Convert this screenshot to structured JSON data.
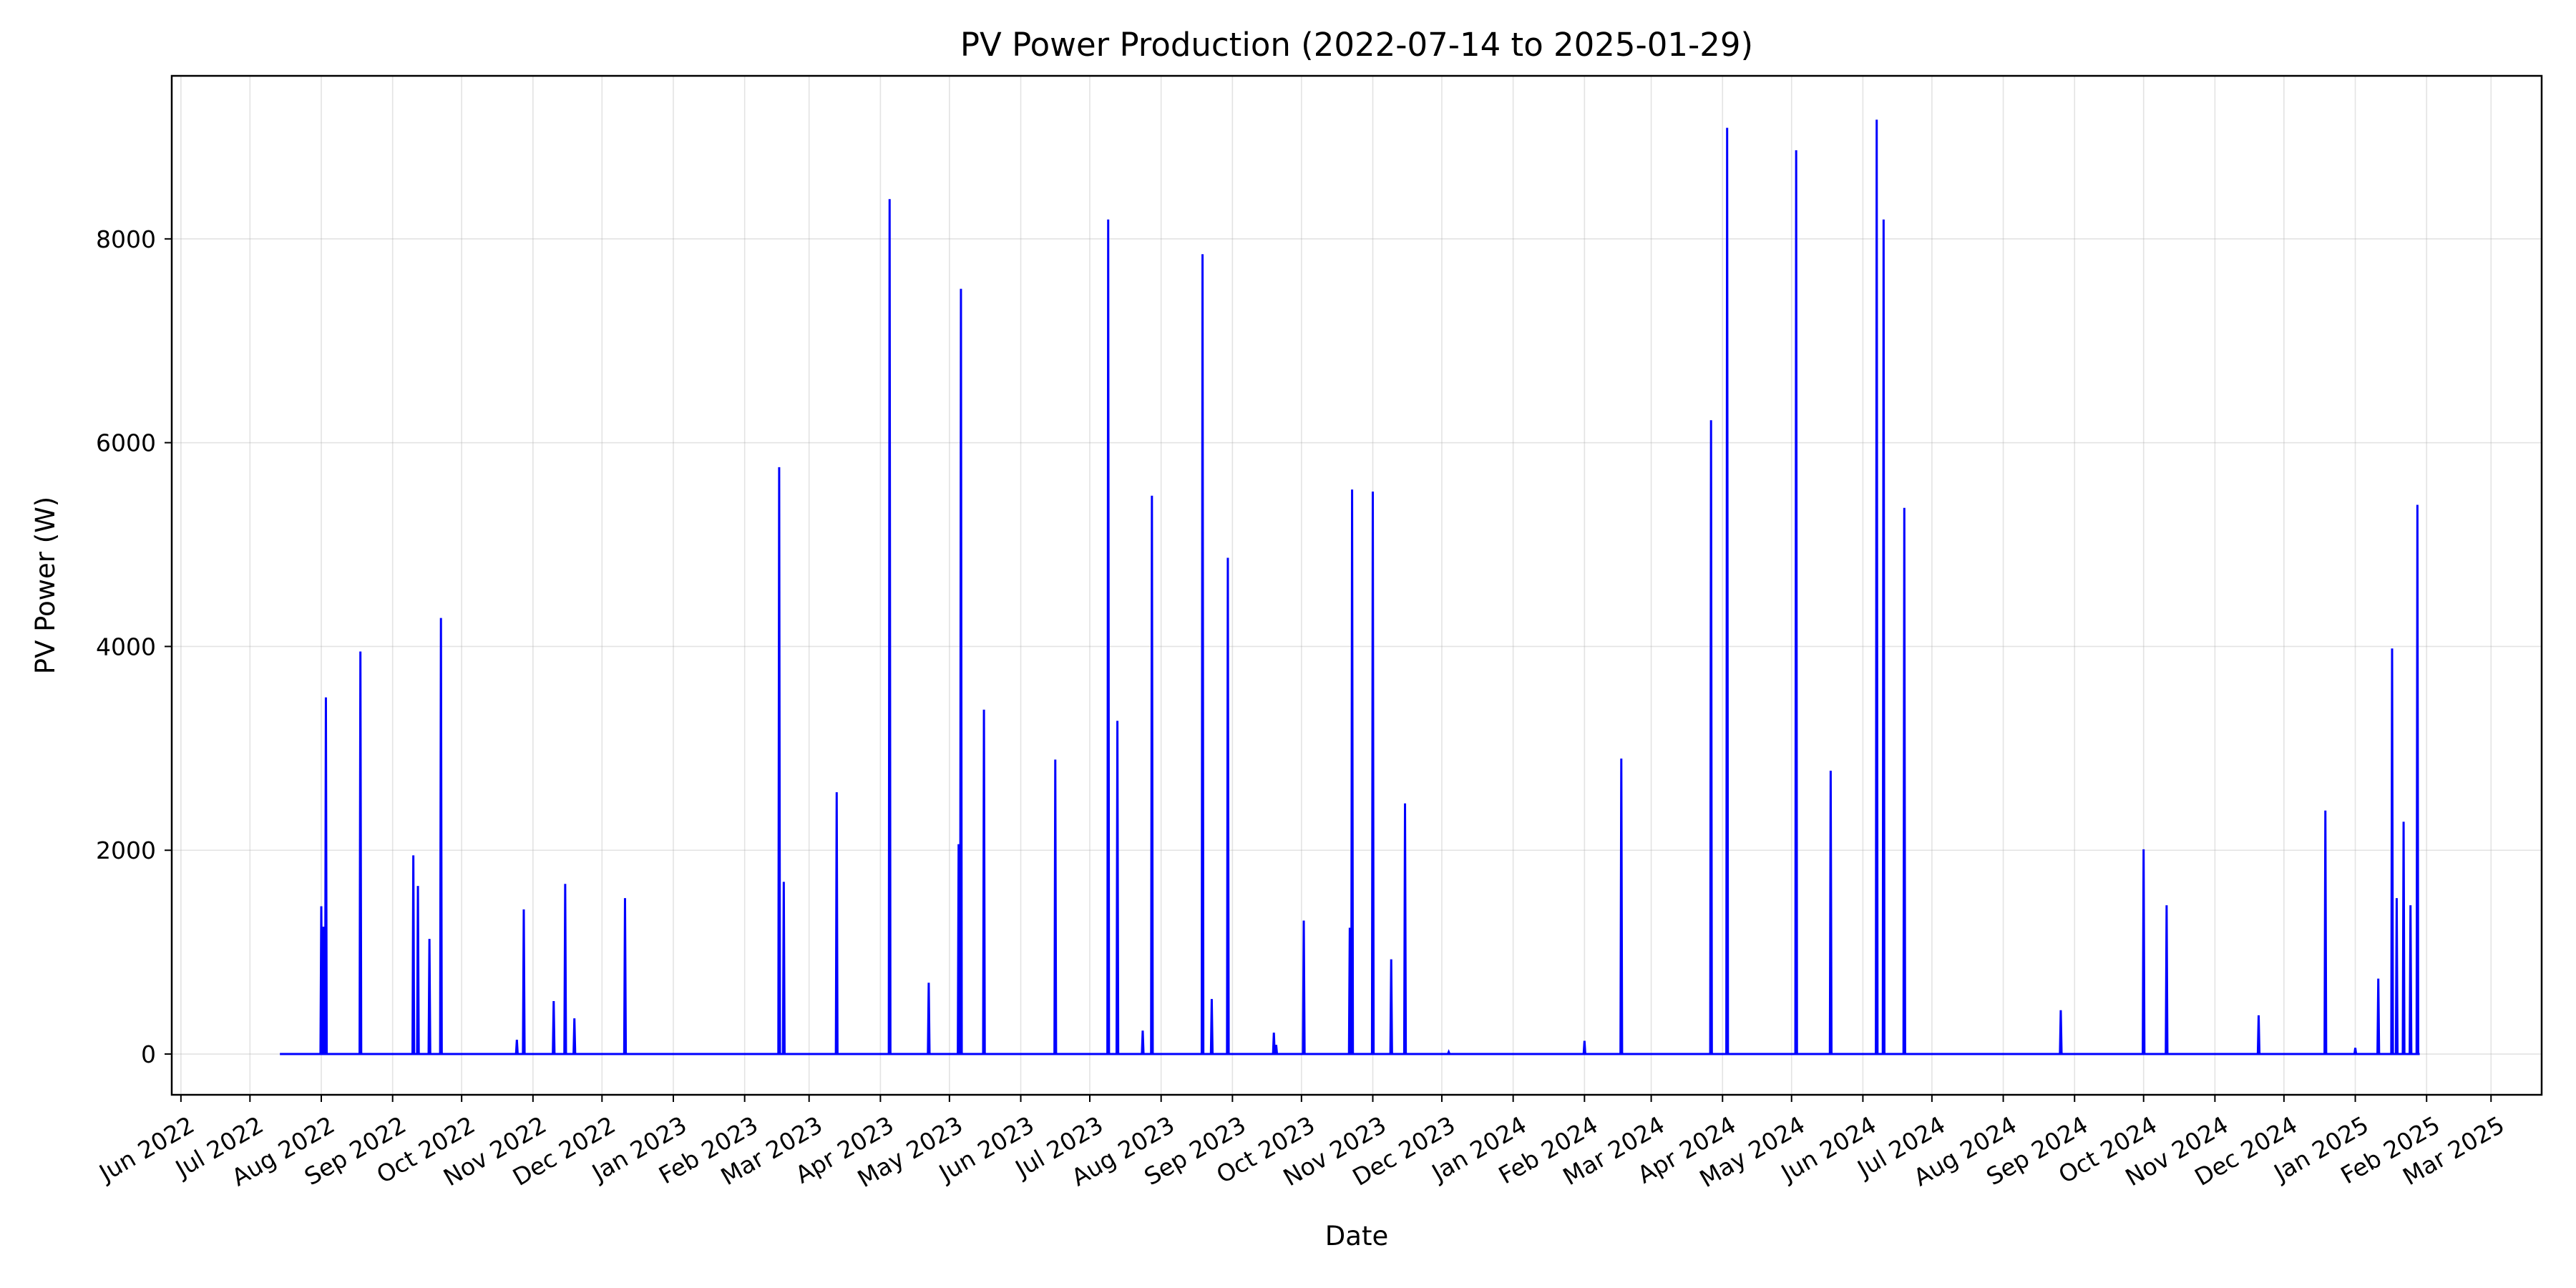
{
  "chart_data": {
    "type": "line",
    "title": "PV Power Production (2022-07-14 to 2025-01-29)",
    "xlabel": "Date",
    "ylabel": "PV Power (W)",
    "xlim": [
      "2022-05-28",
      "2025-03-23"
    ],
    "ylim": [
      -400,
      9600
    ],
    "grid": true,
    "line_color": "#0000ff",
    "x_tick_labels": [
      "Jun 2022",
      "Jul 2022",
      "Aug 2022",
      "Sep 2022",
      "Oct 2022",
      "Nov 2022",
      "Dec 2022",
      "Jan 2023",
      "Feb 2023",
      "Mar 2023",
      "Apr 2023",
      "May 2023",
      "Jun 2023",
      "Jul 2023",
      "Aug 2023",
      "Sep 2023",
      "Oct 2023",
      "Nov 2023",
      "Dec 2023",
      "Jan 2024",
      "Feb 2024",
      "Mar 2024",
      "Apr 2024",
      "May 2024",
      "Jun 2024",
      "Jul 2024",
      "Aug 2024",
      "Sep 2024",
      "Oct 2024",
      "Nov 2024",
      "Dec 2024",
      "Jan 2025",
      "Feb 2025",
      "Mar 2025"
    ],
    "y_ticks": [
      0,
      2000,
      4000,
      6000,
      8000
    ],
    "series": [
      {
        "x_range": [
          "2022-07-14",
          "2025-01-29"
        ],
        "baseline": 0,
        "spikes": [
          {
            "date": "2022-08-01",
            "value": 1450
          },
          {
            "date": "2022-08-02",
            "value": 1250
          },
          {
            "date": "2022-08-03",
            "value": 3500
          },
          {
            "date": "2022-08-18",
            "value": 3950
          },
          {
            "date": "2022-09-10",
            "value": 1950
          },
          {
            "date": "2022-09-12",
            "value": 1650
          },
          {
            "date": "2022-09-17",
            "value": 1130
          },
          {
            "date": "2022-09-22",
            "value": 4280
          },
          {
            "date": "2022-10-25",
            "value": 140
          },
          {
            "date": "2022-10-28",
            "value": 1420
          },
          {
            "date": "2022-11-10",
            "value": 520
          },
          {
            "date": "2022-11-15",
            "value": 1670
          },
          {
            "date": "2022-11-19",
            "value": 350
          },
          {
            "date": "2022-12-11",
            "value": 1530
          },
          {
            "date": "2023-02-16",
            "value": 5760
          },
          {
            "date": "2023-02-18",
            "value": 1690
          },
          {
            "date": "2023-03-13",
            "value": 2570
          },
          {
            "date": "2023-04-05",
            "value": 8390
          },
          {
            "date": "2023-04-22",
            "value": 700
          },
          {
            "date": "2023-05-05",
            "value": 2060
          },
          {
            "date": "2023-05-06",
            "value": 7510
          },
          {
            "date": "2023-05-16",
            "value": 3380
          },
          {
            "date": "2023-06-16",
            "value": 2890
          },
          {
            "date": "2023-07-09",
            "value": 8190
          },
          {
            "date": "2023-07-13",
            "value": 3270
          },
          {
            "date": "2023-07-24",
            "value": 230
          },
          {
            "date": "2023-07-28",
            "value": 5480
          },
          {
            "date": "2023-08-19",
            "value": 7850
          },
          {
            "date": "2023-08-23",
            "value": 540
          },
          {
            "date": "2023-08-30",
            "value": 4870
          },
          {
            "date": "2023-09-19",
            "value": 210
          },
          {
            "date": "2023-09-20",
            "value": 90
          },
          {
            "date": "2023-10-02",
            "value": 1310
          },
          {
            "date": "2023-10-22",
            "value": 1240
          },
          {
            "date": "2023-10-23",
            "value": 5540
          },
          {
            "date": "2023-11-01",
            "value": 5520
          },
          {
            "date": "2023-11-09",
            "value": 930
          },
          {
            "date": "2023-11-15",
            "value": 2460
          },
          {
            "date": "2023-12-04",
            "value": 20
          },
          {
            "date": "2024-02-01",
            "value": 130
          },
          {
            "date": "2024-02-17",
            "value": 2900
          },
          {
            "date": "2024-03-27",
            "value": 6220
          },
          {
            "date": "2024-04-03",
            "value": 9090
          },
          {
            "date": "2024-05-03",
            "value": 8870
          },
          {
            "date": "2024-05-18",
            "value": 2780
          },
          {
            "date": "2024-06-07",
            "value": 9170
          },
          {
            "date": "2024-06-10",
            "value": 8190
          },
          {
            "date": "2024-06-19",
            "value": 5360
          },
          {
            "date": "2024-08-26",
            "value": 430
          },
          {
            "date": "2024-10-01",
            "value": 2010
          },
          {
            "date": "2024-10-11",
            "value": 1460
          },
          {
            "date": "2024-11-20",
            "value": 380
          },
          {
            "date": "2024-12-19",
            "value": 2390
          },
          {
            "date": "2025-01-01",
            "value": 60
          },
          {
            "date": "2025-01-11",
            "value": 740
          },
          {
            "date": "2025-01-17",
            "value": 3980
          },
          {
            "date": "2025-01-19",
            "value": 1530
          },
          {
            "date": "2025-01-22",
            "value": 2280
          },
          {
            "date": "2025-01-25",
            "value": 1460
          },
          {
            "date": "2025-01-28",
            "value": 5390
          }
        ]
      }
    ]
  }
}
